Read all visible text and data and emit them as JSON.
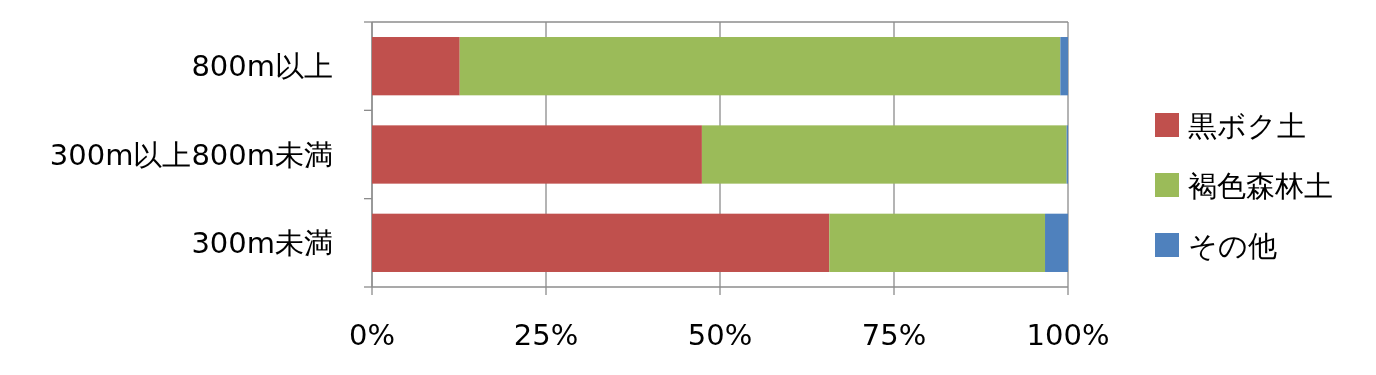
{
  "chart_data": {
    "type": "bar",
    "orientation": "horizontal",
    "stacked": true,
    "categories": [
      "800m以上",
      "300m以上800m未満",
      "300m未満"
    ],
    "series": [
      {
        "name": "黒ボク土",
        "color": "#c0504d",
        "values": [
          12.6,
          47.4,
          65.7
        ]
      },
      {
        "name": "褐色森林土",
        "color": "#9bbb59",
        "values": [
          86.3,
          52.4,
          31.0
        ]
      },
      {
        "name": "その他",
        "color": "#4f81bd",
        "values": [
          1.1,
          0.2,
          3.3
        ]
      }
    ],
    "xlim": [
      0,
      100
    ],
    "xticks": [
      {
        "value": 0,
        "label": "0%"
      },
      {
        "value": 25,
        "label": "25%"
      },
      {
        "value": 50,
        "label": "50%"
      },
      {
        "value": 75,
        "label": "75%"
      },
      {
        "value": 100,
        "label": "100%"
      }
    ],
    "grid": "x",
    "legend": "right"
  }
}
